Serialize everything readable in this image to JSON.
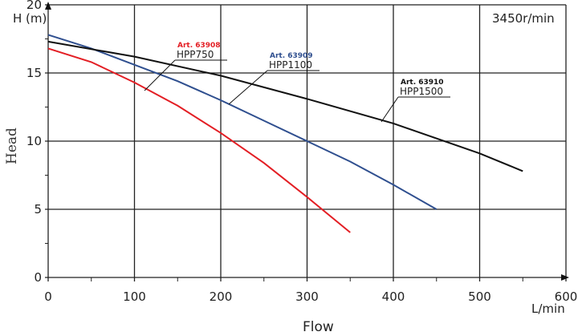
{
  "chart_data": {
    "type": "line",
    "title": "",
    "annotation": "3450r/min",
    "xlabel": "Flow",
    "xunit": "L/min",
    "ylabel": "Head",
    "yunit": "H (m)",
    "xlim": [
      0,
      600
    ],
    "ylim": [
      0,
      20
    ],
    "xticks": [
      0,
      100,
      200,
      300,
      400,
      500,
      600
    ],
    "yticks": [
      0,
      5,
      10,
      15,
      20
    ],
    "grid": true,
    "series": [
      {
        "name": "HPP750",
        "art": "Art. 63908",
        "color": "#e31e24",
        "x": [
          0,
          50,
          100,
          150,
          200,
          250,
          300,
          350
        ],
        "y": [
          16.8,
          15.8,
          14.3,
          12.6,
          10.6,
          8.4,
          5.9,
          3.3
        ]
      },
      {
        "name": "HPP1100",
        "art": "Art. 63909",
        "color": "#2f4f8f",
        "x": [
          0,
          50,
          100,
          150,
          200,
          250,
          300,
          350,
          400,
          450
        ],
        "y": [
          17.8,
          16.8,
          15.6,
          14.4,
          13.0,
          11.5,
          10.0,
          8.5,
          6.8,
          5.0
        ]
      },
      {
        "name": "HPP1500",
        "art": "Art. 63910",
        "color": "#111111",
        "x": [
          0,
          100,
          200,
          300,
          400,
          500,
          550
        ],
        "y": [
          17.3,
          16.2,
          14.8,
          13.1,
          11.3,
          9.1,
          7.8
        ]
      }
    ]
  }
}
